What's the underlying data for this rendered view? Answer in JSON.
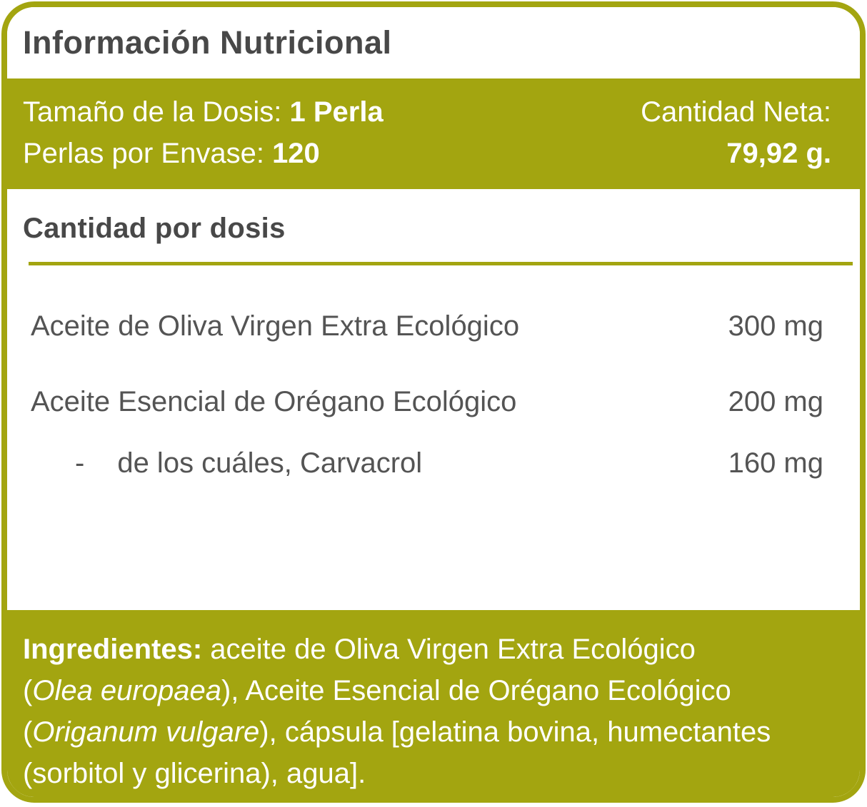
{
  "colors": {
    "olive_green": "#a3a510",
    "dark_text": "#484848",
    "white_text": "#ffffff"
  },
  "header": {
    "title": "Información Nutricional"
  },
  "dosage": {
    "serving_label": "Tamaño de la Dosis: ",
    "serving_value": "1 Perla",
    "count_label": "Perlas por Envase: ",
    "count_value": "120",
    "net_label": "Cantidad Neta:",
    "net_value": "79,92 g."
  },
  "amount_section": {
    "heading": "Cantidad por dosis",
    "rows": [
      {
        "name": "Aceite de Oliva Virgen Extra Ecológico",
        "amount": "300 mg",
        "indent": false
      },
      {
        "name": "Aceite Esencial de Orégano Ecológico",
        "amount": "200 mg",
        "indent": false
      },
      {
        "name": "de los cuáles, Carvacrol",
        "amount": "160 mg",
        "indent": true,
        "prefix": "-"
      }
    ]
  },
  "ingredients": {
    "segments": [
      {
        "text": "Ingredientes: ",
        "style": "bold"
      },
      {
        "text": "aceite de Oliva Virgen Extra Ecológico",
        "style": "normal"
      },
      {
        "style": "break"
      },
      {
        "text": "(",
        "style": "normal"
      },
      {
        "text": "Olea europaea",
        "style": "italic"
      },
      {
        "text": "), Aceite Esencial de Orégano Ecológico",
        "style": "normal"
      },
      {
        "style": "break"
      },
      {
        "text": "(",
        "style": "normal"
      },
      {
        "text": "Origanum vulgare",
        "style": "italic"
      },
      {
        "text": "), cápsula [gelatina bovina, humectantes",
        "style": "normal"
      },
      {
        "style": "break"
      },
      {
        "text": "(sorbitol y glicerina), agua].",
        "style": "normal"
      }
    ]
  }
}
